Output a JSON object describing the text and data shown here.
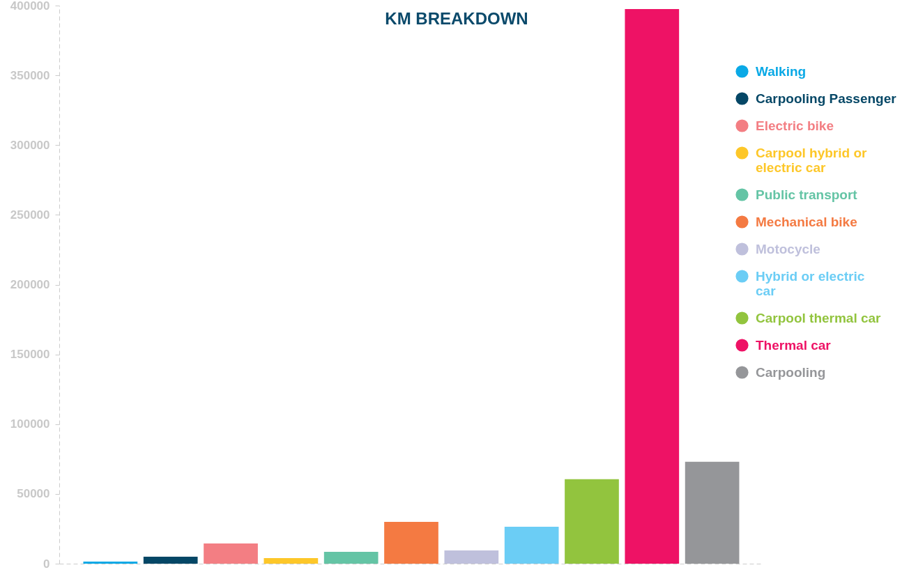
{
  "chart_data": {
    "type": "bar",
    "title": "KM BREAKDOWN",
    "stacked": true,
    "categories": [
      null,
      null,
      null,
      null,
      null,
      null,
      null,
      null,
      null,
      null,
      null
    ],
    "series": [
      {
        "name": "Walking",
        "color": "#0aa9e6",
        "values": [
          1500,
          null,
          null,
          null,
          null,
          null,
          null,
          null,
          null,
          null,
          null
        ]
      },
      {
        "name": "Carpooling Passenger",
        "color": "#054766",
        "values": [
          null,
          5000,
          null,
          null,
          null,
          null,
          null,
          null,
          null,
          null,
          null
        ]
      },
      {
        "name": "Electric bike",
        "color": "#f37e83",
        "values": [
          null,
          null,
          14500,
          null,
          null,
          null,
          null,
          null,
          null,
          null,
          null
        ]
      },
      {
        "name": "Carpool hybrid or electric car",
        "color": "#fdc729",
        "values": [
          null,
          null,
          null,
          4000,
          null,
          null,
          null,
          null,
          null,
          null,
          null
        ]
      },
      {
        "name": "Public transport",
        "color": "#64c4a5",
        "values": [
          null,
          null,
          null,
          null,
          8500,
          null,
          null,
          null,
          null,
          null,
          null
        ]
      },
      {
        "name": "Mechanical bike",
        "color": "#f47a42",
        "values": [
          null,
          null,
          null,
          null,
          null,
          30000,
          null,
          null,
          null,
          null,
          null
        ]
      },
      {
        "name": "Motocycle",
        "color": "#bfc0dc",
        "values": [
          null,
          null,
          null,
          null,
          null,
          null,
          9500,
          null,
          null,
          null,
          null
        ]
      },
      {
        "name": "Hybrid or electric car",
        "color": "#6bcdf5",
        "values": [
          null,
          null,
          null,
          null,
          null,
          null,
          null,
          26500,
          null,
          null,
          null
        ]
      },
      {
        "name": "Carpool thermal car",
        "color": "#92c43e",
        "values": [
          null,
          null,
          null,
          null,
          null,
          null,
          null,
          null,
          60500,
          null,
          null
        ]
      },
      {
        "name": "Thermal car",
        "color": "#ee1265",
        "values": [
          null,
          null,
          null,
          null,
          null,
          null,
          null,
          null,
          null,
          397500,
          null
        ]
      },
      {
        "name": "Carpooling",
        "color": "#959699",
        "values": [
          null,
          null,
          null,
          null,
          null,
          null,
          null,
          null,
          null,
          null,
          73000
        ]
      }
    ],
    "ylim": [
      0,
      400000
    ],
    "yticks": [
      0,
      50000,
      100000,
      150000,
      200000,
      250000,
      300000,
      350000,
      400000
    ],
    "grid": false,
    "legend": "right"
  }
}
